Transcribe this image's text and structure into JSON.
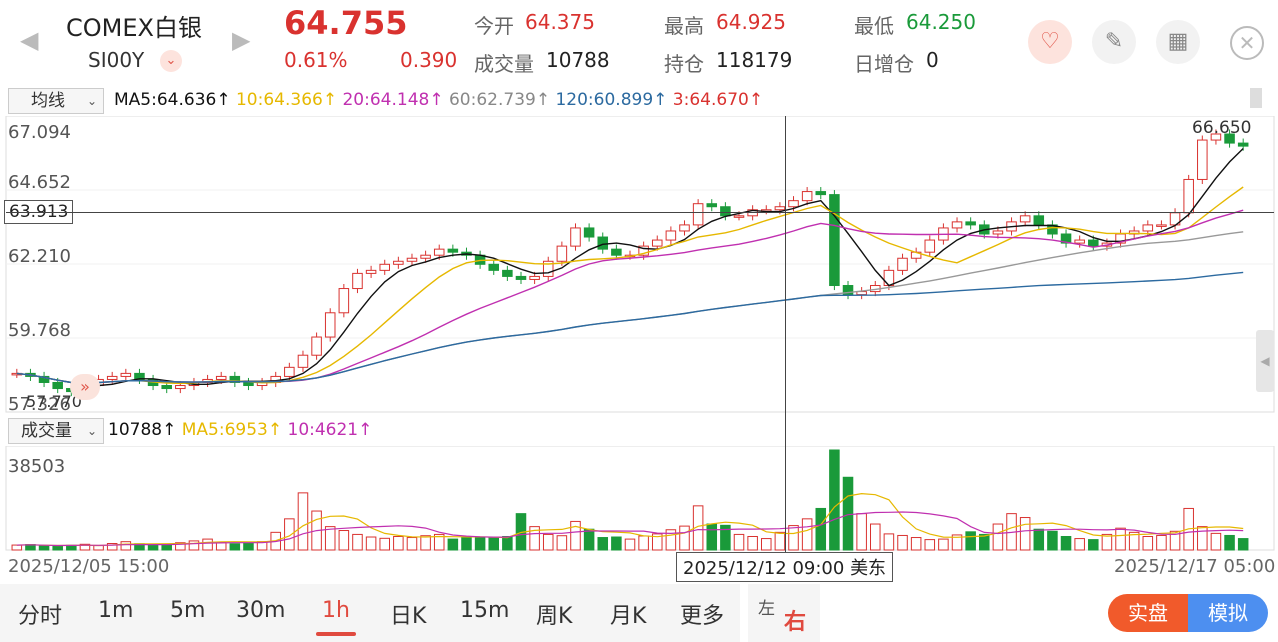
{
  "header": {
    "title": "COMEX白银",
    "code": "SI00Y",
    "price": "64.755",
    "change_pct": "0.61%",
    "change": "0.390",
    "open_label": "今开",
    "open": "64.375",
    "high_label": "最高",
    "high": "64.925",
    "low_label": "最低",
    "low": "64.250",
    "volume_label": "成交量",
    "volume": "10788",
    "oi_label": "持仓",
    "oi": "118179",
    "oi_change_label": "日增仓",
    "oi_change": "0"
  },
  "indicator": {
    "select_label": "均线",
    "ma5": "MA5:64.636↑",
    "ma10": "10:64.366↑",
    "ma20": "20:64.148↑",
    "ma60": "60:62.739↑",
    "ma120": "120:60.899↑",
    "ma3": "3:64.670↑"
  },
  "volume_indicator": {
    "select_label": "成交量",
    "vol": "10788↑",
    "ma5": "MA5:6953↑",
    "ma10": "10:4621↑"
  },
  "axis": {
    "y_labels": [
      "67.094",
      "64.652",
      "62.210",
      "59.768",
      "57.326"
    ],
    "vol_top": "38503",
    "cross_price": "63.913",
    "max_label": "66.650",
    "min_label": "57.770",
    "date_left": "2025/12/05 15:00",
    "date_cross": "2025/12/12 09:00 美东",
    "date_right": "2025/12/17 05:00"
  },
  "timeframes": [
    "分时",
    "1m",
    "5m",
    "30m",
    "1h",
    "日K",
    "15m",
    "周K",
    "月K",
    "更多"
  ],
  "active_timeframe": "1h",
  "side_toggle": {
    "left": "左",
    "right": "右"
  },
  "buttons": {
    "real": "实盘",
    "sim": "模拟"
  },
  "colors": {
    "up": "#d9322f",
    "down": "#1a9a3a",
    "ma5": "#111111",
    "ma10": "#e6b800",
    "ma20": "#c030b0",
    "ma60": "#999999",
    "ma120": "#2c6aa0"
  },
  "chart_data": {
    "type": "candlestick",
    "ylim": [
      57.326,
      67.094
    ],
    "closes": [
      58.6,
      58.5,
      58.3,
      58.1,
      58.0,
      58.2,
      58.4,
      58.5,
      58.6,
      58.4,
      58.2,
      58.1,
      58.2,
      58.3,
      58.4,
      58.5,
      58.3,
      58.2,
      58.3,
      58.5,
      58.8,
      59.2,
      59.8,
      60.6,
      61.4,
      61.9,
      62.0,
      62.2,
      62.3,
      62.4,
      62.5,
      62.7,
      62.6,
      62.5,
      62.2,
      62.0,
      61.8,
      61.7,
      61.8,
      62.3,
      62.8,
      63.4,
      63.1,
      62.7,
      62.5,
      62.5,
      62.8,
      63.0,
      63.3,
      63.5,
      64.2,
      64.1,
      63.8,
      63.8,
      64.0,
      64.0,
      64.1,
      64.3,
      64.6,
      64.5,
      61.5,
      61.2,
      61.3,
      61.5,
      62.0,
      62.4,
      62.6,
      63.0,
      63.4,
      63.6,
      63.5,
      63.2,
      63.3,
      63.6,
      63.8,
      63.5,
      63.2,
      62.9,
      63.0,
      62.8,
      62.9,
      63.2,
      63.3,
      63.5,
      63.5,
      63.9,
      65.0,
      66.3,
      66.5,
      66.2,
      66.1
    ],
    "volumes": [
      1900,
      2100,
      1600,
      1400,
      1800,
      2200,
      1700,
      2500,
      3200,
      2400,
      1900,
      2200,
      2800,
      3500,
      4200,
      3000,
      2400,
      2600,
      3200,
      6800,
      12000,
      22000,
      15000,
      9000,
      7500,
      6000,
      5000,
      4500,
      5200,
      4800,
      5500,
      6000,
      4200,
      4800,
      5000,
      4600,
      5200,
      14000,
      9000,
      6000,
      5500,
      11000,
      8000,
      4800,
      5000,
      4200,
      5400,
      6200,
      7800,
      9200,
      17000,
      10000,
      9500,
      6000,
      5200,
      4400,
      6800,
      9400,
      12000,
      16000,
      38503,
      28000,
      14000,
      10000,
      6200,
      5600,
      4800,
      4000,
      4200,
      5800,
      7000,
      6000,
      10000,
      14000,
      12500,
      8000,
      7200,
      5200,
      4400,
      4000,
      6000,
      8400,
      6800,
      5200,
      5600,
      7200,
      16000,
      9000,
      6400,
      5600,
      4400
    ]
  }
}
